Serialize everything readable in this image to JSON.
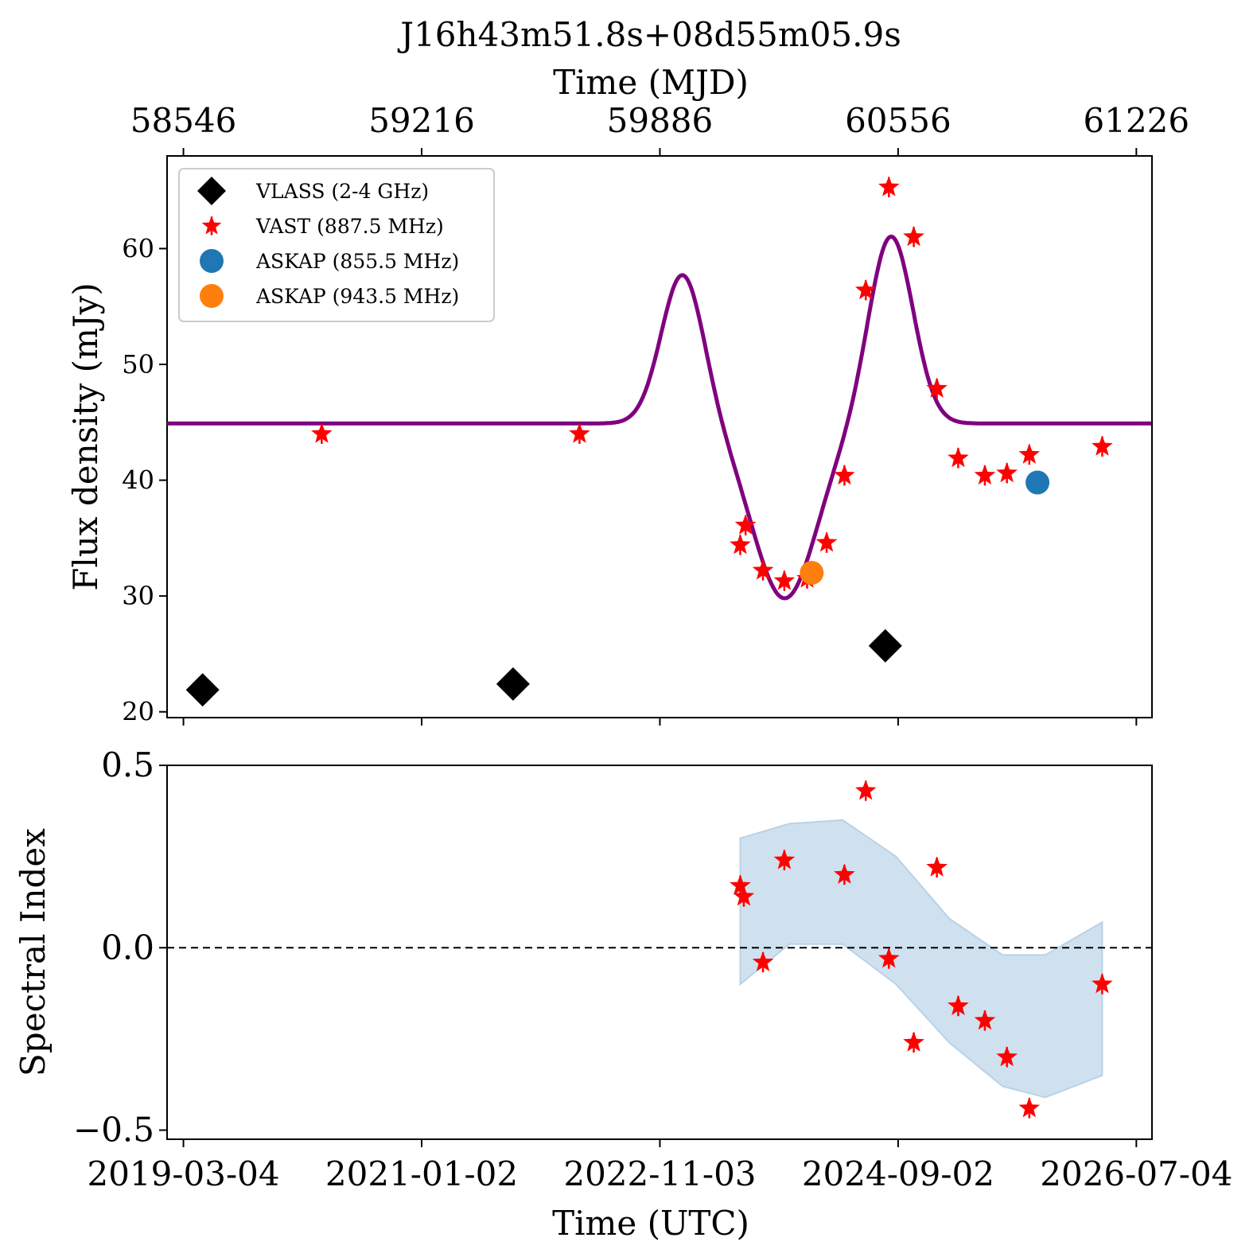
{
  "title": "J16h43m51.8s+08d55m05.9s",
  "chart_data": [
    {
      "type": "scatter",
      "panel": "flux",
      "title": "J16h43m51.8s+08d55m05.9s",
      "xlabel_top": "Time (MJD)",
      "xlabel": "",
      "ylabel": "Flux density (mJy)",
      "xlim": [
        58500,
        61270
      ],
      "ylim": [
        19.5,
        68
      ],
      "x_ticks_top": [
        "58546",
        "59216",
        "59886",
        "60556",
        "61226"
      ],
      "x_tick_values": [
        58546,
        59216,
        59886,
        60556,
        61226
      ],
      "y_ticks": [
        "20",
        "30",
        "40",
        "50",
        "60"
      ],
      "y_tick_values": [
        20,
        30,
        40,
        50,
        60
      ],
      "legend_position": "upper-left",
      "colors": {
        "vlass": "#000000",
        "vast": "#ff0000",
        "askap_855": "#1f77b4",
        "askap_943": "#ff7f0e",
        "model": "#800080"
      },
      "series": [
        {
          "name": "VLASS (2-4 GHz)",
          "marker": "diamond",
          "points": [
            [
              58600,
              21.9
            ],
            [
              59473,
              22.4
            ],
            [
              60520,
              25.7
            ]
          ]
        },
        {
          "name": "VAST (887.5 MHz)",
          "marker": "star",
          "points": [
            [
              58935,
              44.0
            ],
            [
              59660,
              44.0
            ],
            [
              60112,
              34.4
            ],
            [
              60127,
              36.1
            ],
            [
              60176,
              32.2
            ],
            [
              60236,
              31.3
            ],
            [
              60300,
              31.5
            ],
            [
              60355,
              34.6
            ],
            [
              60405,
              40.4
            ],
            [
              60465,
              56.4
            ],
            [
              60530,
              65.3
            ],
            [
              60600,
              61.0
            ],
            [
              60665,
              47.9
            ],
            [
              60725,
              41.9
            ],
            [
              60800,
              40.4
            ],
            [
              60862,
              40.6
            ],
            [
              60925,
              42.2
            ],
            [
              61130,
              42.9
            ]
          ]
        },
        {
          "name": "ASKAP (855.5 MHz)",
          "marker": "circle",
          "points": [
            [
              60948,
              39.8
            ]
          ]
        },
        {
          "name": "ASKAP (943.5 MHz)",
          "marker": "circle",
          "points": [
            [
              60313,
              32.0
            ]
          ]
        }
      ],
      "model_curve": {
        "baseline": 44.9,
        "components": [
          {
            "amp": 12.9,
            "center": 59950,
            "sigma": 60
          },
          {
            "amp": -15.1,
            "center": 60237,
            "sigma": 90
          },
          {
            "amp": 16.2,
            "center": 60536,
            "sigma": 62
          }
        ]
      }
    },
    {
      "type": "scatter",
      "panel": "spectral_index",
      "xlabel": "Time (UTC)",
      "ylabel": "Spectral Index",
      "xlim": [
        58500,
        61270
      ],
      "ylim": [
        -0.525,
        0.5
      ],
      "x_ticks": [
        "2019-03-04",
        "2021-01-02",
        "2022-11-03",
        "2024-09-02",
        "2026-07-04"
      ],
      "x_tick_values": [
        58546,
        59216,
        59886,
        60556,
        61226
      ],
      "y_ticks": [
        "0.5",
        "0.0",
        "−0.5"
      ],
      "y_tick_values": [
        0.5,
        0.0,
        -0.5
      ],
      "reference_line": 0.0,
      "band_color": "#cfe1ef",
      "band": {
        "x": [
          60112,
          60250,
          60400,
          60550,
          60700,
          60850,
          60970,
          61130
        ],
        "upper": [
          0.3,
          0.34,
          0.35,
          0.25,
          0.08,
          -0.02,
          -0.02,
          0.07
        ],
        "lower": [
          -0.1,
          0.01,
          0.01,
          -0.1,
          -0.26,
          -0.38,
          -0.41,
          -0.35
        ]
      },
      "series": [
        {
          "name": "VAST (887.5 MHz)",
          "marker": "star",
          "points": [
            [
              60112,
              0.17
            ],
            [
              60122,
              0.14
            ],
            [
              60176,
              -0.04
            ],
            [
              60236,
              0.24
            ],
            [
              60405,
              0.2
            ],
            [
              60465,
              0.43
            ],
            [
              60530,
              -0.03
            ],
            [
              60600,
              -0.26
            ],
            [
              60665,
              0.22
            ],
            [
              60725,
              -0.16
            ],
            [
              60800,
              -0.2
            ],
            [
              60862,
              -0.3
            ],
            [
              60925,
              -0.44
            ],
            [
              61130,
              -0.1
            ]
          ]
        }
      ]
    }
  ]
}
